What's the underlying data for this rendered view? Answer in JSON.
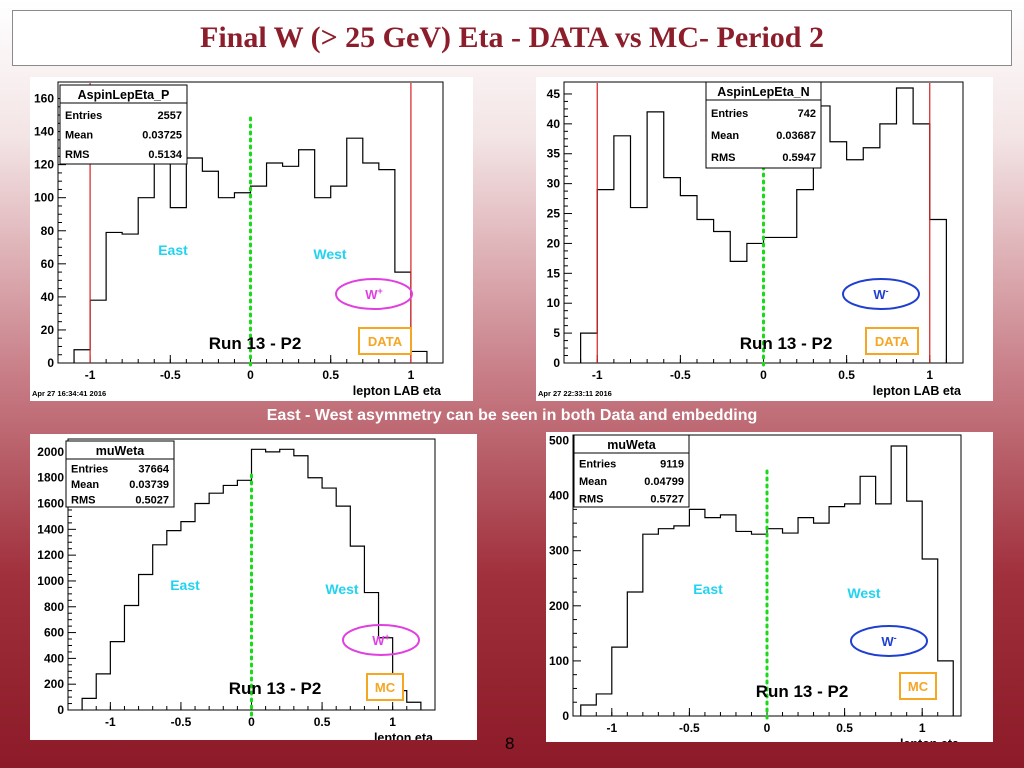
{
  "title": "Final W (> 25 GeV) Eta - DATA vs MC- Period 2",
  "caption": "East - West asymmetry can be seen in both Data and embedding",
  "page_number": "8",
  "colors": {
    "title": "#8c1d2a",
    "data_mc_box": "#f5a623",
    "wplus_ellipse": "#e040e0",
    "wminus_ellipse": "#1f3fd0",
    "east_west_text": "#22d3f0",
    "cut_line": "#d62020",
    "center_line": "#19d919"
  },
  "chart_data": [
    {
      "type": "histogram",
      "stats": {
        "name": "AspinLepEta_P",
        "rows": [
          [
            "Entries",
            "2557"
          ],
          [
            "Mean",
            "0.03725"
          ],
          [
            "RMS",
            "0.5134"
          ]
        ]
      },
      "xlabel": "lepton LAB eta",
      "xlim": [
        -1.2,
        1.2
      ],
      "ylim": [
        0,
        170
      ],
      "yticks": [
        0,
        20,
        40,
        60,
        80,
        100,
        120,
        140,
        160
      ],
      "xticks": [
        -1,
        -0.5,
        0,
        0.5,
        1
      ],
      "xtick_labels": [
        "-1",
        "-0.5",
        "0",
        "0.5",
        "1"
      ],
      "bin_edges": [
        -1.1,
        -1.0,
        -0.9,
        -0.8,
        -0.7,
        -0.6,
        -0.5,
        -0.4,
        -0.3,
        -0.2,
        -0.1,
        0.0,
        0.1,
        0.2,
        0.3,
        0.4,
        0.5,
        0.6,
        0.7,
        0.8,
        0.9,
        1.0,
        1.1
      ],
      "values": [
        8,
        38,
        79,
        78,
        100,
        133,
        94,
        124,
        116,
        100,
        103,
        107,
        121,
        119,
        129,
        100,
        107,
        136,
        121,
        117,
        55,
        7
      ],
      "cut_lines": [
        -1.0,
        1.0
      ],
      "center_line": 0,
      "timestamp": "Apr 27 16:34:41 2016",
      "run_label": "Run 13 - P2",
      "tag": "DATA",
      "charge_label": {
        "base": "W",
        "sup": "+"
      },
      "east_label": "East",
      "west_label": "West"
    },
    {
      "type": "histogram",
      "stats": {
        "name": "AspinLepEta_N",
        "rows": [
          [
            "Entries",
            "742"
          ],
          [
            "Mean",
            "0.03687"
          ],
          [
            "RMS",
            "0.5947"
          ]
        ]
      },
      "xlabel": "lepton LAB eta",
      "xlim": [
        -1.2,
        1.2
      ],
      "ylim": [
        0,
        47
      ],
      "yticks": [
        0,
        5,
        10,
        15,
        20,
        25,
        30,
        35,
        40,
        45
      ],
      "xticks": [
        -1,
        -0.5,
        0,
        0.5,
        1
      ],
      "xtick_labels": [
        "-1",
        "-0.5",
        "0",
        "0.5",
        "1"
      ],
      "bin_edges": [
        -1.1,
        -1.0,
        -0.9,
        -0.8,
        -0.7,
        -0.6,
        -0.5,
        -0.4,
        -0.3,
        -0.2,
        -0.1,
        0.0,
        0.1,
        0.2,
        0.3,
        0.4,
        0.5,
        0.6,
        0.7,
        0.8,
        0.9,
        1.0,
        1.1
      ],
      "values": [
        5,
        29,
        38,
        26,
        42,
        31,
        28,
        24,
        22,
        17,
        20,
        21,
        21,
        29,
        43,
        37,
        34,
        36,
        40,
        46,
        40,
        24
      ],
      "cut_lines": [
        -1.0,
        1.0
      ],
      "center_line": 0,
      "timestamp": "Apr 27 22:33:11 2016",
      "run_label": "Run 13 - P2",
      "tag": "DATA",
      "charge_label": {
        "base": "W",
        "sup": "-"
      },
      "east_label": "",
      "west_label": ""
    },
    {
      "type": "histogram",
      "stats": {
        "name": "muWeta",
        "rows": [
          [
            "Entries",
            "37664"
          ],
          [
            "Mean",
            "0.03739"
          ],
          [
            "RMS",
            "0.5027"
          ]
        ]
      },
      "xlabel": "lepton eta",
      "xlim": [
        -1.3,
        1.3
      ],
      "ylim": [
        0,
        2100
      ],
      "yticks": [
        0,
        200,
        400,
        600,
        800,
        1000,
        1200,
        1400,
        1600,
        1800,
        2000
      ],
      "xticks": [
        -1,
        -0.5,
        0,
        0.5,
        1
      ],
      "xtick_labels": [
        "-1",
        "-0.5",
        "0",
        "0.5",
        "1"
      ],
      "bin_edges": [
        -1.2,
        -1.1,
        -1.0,
        -0.9,
        -0.8,
        -0.7,
        -0.6,
        -0.5,
        -0.4,
        -0.3,
        -0.2,
        -0.1,
        0.0,
        0.1,
        0.2,
        0.3,
        0.4,
        0.5,
        0.6,
        0.7,
        0.8,
        0.9,
        1.0,
        1.1,
        1.2
      ],
      "values": [
        90,
        280,
        530,
        810,
        1050,
        1280,
        1390,
        1460,
        1600,
        1680,
        1740,
        1780,
        2020,
        2000,
        2020,
        1970,
        1800,
        1720,
        1580,
        1270,
        910,
        560,
        150,
        60
      ],
      "cut_lines": [],
      "center_line": 0,
      "timestamp": "",
      "run_label": "Run 13 - P2",
      "tag": "MC",
      "charge_label": {
        "base": "W",
        "sup": "+"
      },
      "east_label": "East",
      "west_label": "West"
    },
    {
      "type": "histogram",
      "stats": {
        "name": "muWeta",
        "rows": [
          [
            "Entries",
            "9119"
          ],
          [
            "Mean",
            "0.04799"
          ],
          [
            "RMS",
            "0.5727"
          ]
        ]
      },
      "xlabel": "lepton eta",
      "xlim": [
        -1.25,
        1.25
      ],
      "ylim": [
        0,
        510
      ],
      "yticks": [
        0,
        100,
        200,
        300,
        400,
        500
      ],
      "xticks": [
        -1,
        -0.5,
        0,
        0.5,
        1
      ],
      "xtick_labels": [
        "-1",
        "-0.5",
        "0",
        "0.5",
        "1"
      ],
      "bin_edges": [
        -1.2,
        -1.1,
        -1.0,
        -0.9,
        -0.8,
        -0.7,
        -0.6,
        -0.5,
        -0.4,
        -0.3,
        -0.2,
        -0.1,
        0.0,
        0.1,
        0.2,
        0.3,
        0.4,
        0.5,
        0.6,
        0.7,
        0.8,
        0.9,
        1.0,
        1.1,
        1.2
      ],
      "values": [
        20,
        40,
        125,
        225,
        330,
        340,
        345,
        375,
        360,
        365,
        335,
        330,
        340,
        332,
        360,
        350,
        380,
        385,
        435,
        385,
        490,
        390,
        285,
        100
      ],
      "cut_lines": [],
      "center_line": 0,
      "timestamp": "",
      "run_label": "Run 13 - P2",
      "tag": "MC",
      "charge_label": {
        "base": "W",
        "sup": "-"
      },
      "east_label": "East",
      "west_label": "West"
    }
  ]
}
